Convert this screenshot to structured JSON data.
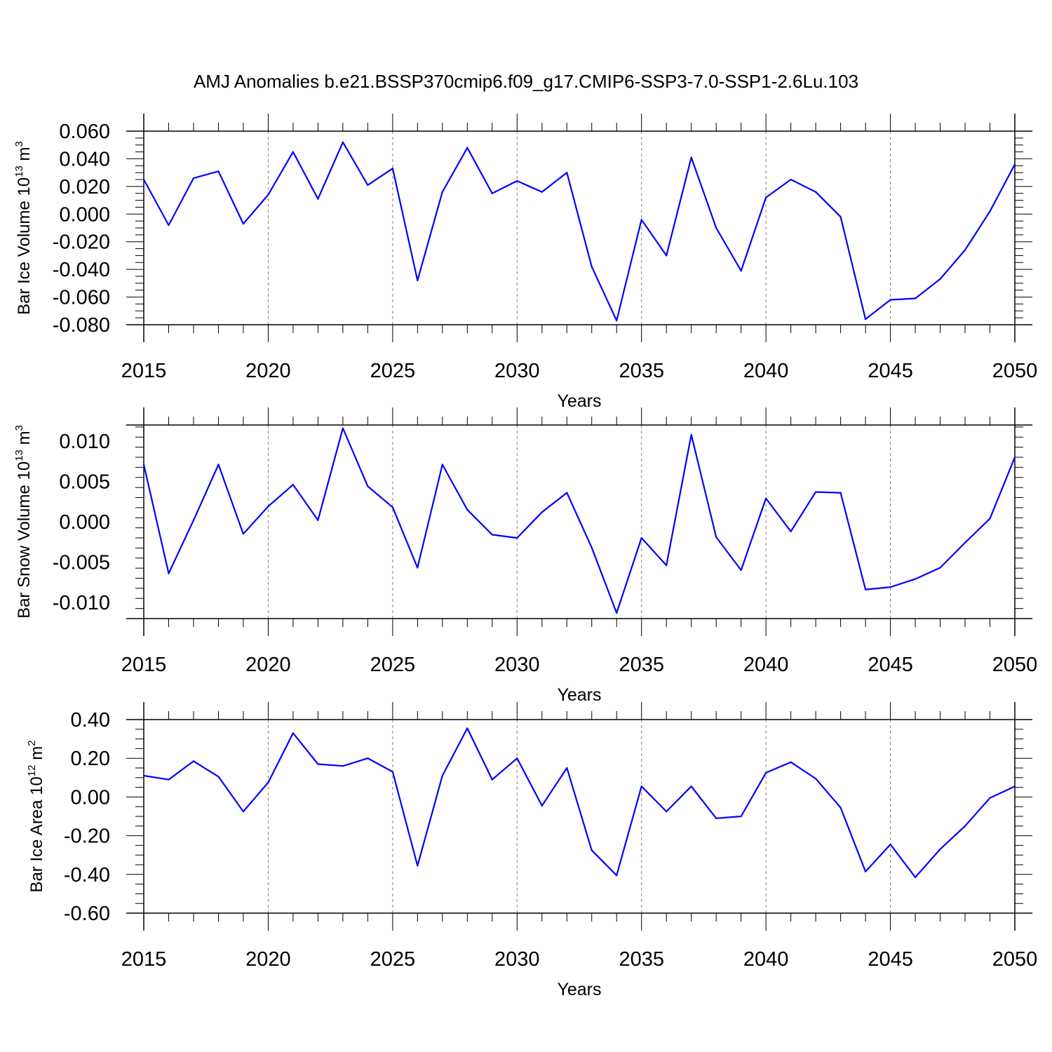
{
  "title": "AMJ Anomalies b.e21.BSSP370cmip6.f09_g17.CMIP6-SSP3-7.0-SSP1-2.6Lu.103",
  "colors": {
    "line": "#0000ff",
    "axis": "#000000",
    "grid": "#808080"
  },
  "chart_data": [
    {
      "type": "line",
      "ylabel": {
        "base": "Bar Ice Volume 10",
        "sup": "13",
        "unit": "m",
        "unit_sup": "3"
      },
      "xlabel": "Years",
      "xlim": [
        2015,
        2050
      ],
      "ylim": [
        -0.08,
        0.06
      ],
      "xticks": [
        "2015",
        "2020",
        "2025",
        "2030",
        "2035",
        "2040",
        "2045",
        "2050"
      ],
      "yticks": [
        "0.060",
        "0.040",
        "0.020",
        "0.000",
        "-0.020",
        "-0.040",
        "-0.060",
        "-0.080"
      ],
      "ytick_values": [
        0.06,
        0.04,
        0.02,
        0.0,
        -0.02,
        -0.04,
        -0.06,
        -0.08
      ],
      "grid": "vertical dashed at major x ticks",
      "x": [
        2015,
        2016,
        2017,
        2018,
        2019,
        2020,
        2021,
        2022,
        2023,
        2024,
        2025,
        2026,
        2027,
        2028,
        2029,
        2030,
        2031,
        2032,
        2033,
        2034,
        2035,
        2036,
        2037,
        2038,
        2039,
        2040,
        2041,
        2042,
        2043,
        2044,
        2045,
        2046,
        2047,
        2048,
        2049,
        2050
      ],
      "values": [
        0.025,
        -0.008,
        0.026,
        0.031,
        -0.007,
        0.014,
        0.045,
        0.011,
        0.052,
        0.021,
        0.033,
        -0.048,
        0.016,
        0.048,
        0.015,
        0.024,
        0.016,
        0.03,
        -0.038,
        -0.077,
        -0.004,
        -0.03,
        0.041,
        -0.01,
        -0.041,
        0.012,
        0.025,
        0.016,
        -0.002,
        -0.076,
        -0.062,
        -0.061,
        -0.047,
        -0.026,
        0.002,
        0.036
      ]
    },
    {
      "type": "line",
      "ylabel": {
        "base": "Bar Snow Volume 10",
        "sup": "13",
        "unit": "m",
        "unit_sup": "3"
      },
      "xlabel": "Years",
      "xlim": [
        2015,
        2050
      ],
      "ylim": [
        -0.012,
        0.012
      ],
      "xticks": [
        "2015",
        "2020",
        "2025",
        "2030",
        "2035",
        "2040",
        "2045",
        "2050"
      ],
      "yticks": [
        "0.010",
        "0.005",
        "0.000",
        "-0.005",
        "-0.010"
      ],
      "ytick_values": [
        0.01,
        0.005,
        0.0,
        -0.005,
        -0.01
      ],
      "grid": "vertical dashed at major x ticks",
      "x": [
        2015,
        2016,
        2017,
        2018,
        2019,
        2020,
        2021,
        2022,
        2023,
        2024,
        2025,
        2026,
        2027,
        2028,
        2029,
        2030,
        2031,
        2032,
        2033,
        2034,
        2035,
        2036,
        2037,
        2038,
        2039,
        2040,
        2041,
        2042,
        2043,
        2044,
        2045,
        2046,
        2047,
        2048,
        2049,
        2050
      ],
      "values": [
        0.0071,
        -0.0064,
        0.0002,
        0.0071,
        -0.0015,
        0.0019,
        0.0046,
        0.0002,
        0.0116,
        0.0044,
        0.0018,
        -0.0057,
        0.0071,
        0.0015,
        -0.0016,
        -0.002,
        0.0012,
        0.0036,
        -0.0032,
        -0.0113,
        -0.002,
        -0.0054,
        0.0108,
        -0.0019,
        -0.006,
        0.0029,
        -0.0012,
        0.0037,
        0.0036,
        -0.0084,
        -0.0081,
        -0.0071,
        -0.0057,
        -0.0026,
        0.0004,
        0.008
      ]
    },
    {
      "type": "line",
      "ylabel": {
        "base": "Bar Ice Area 10",
        "sup": "12",
        "unit": "m",
        "unit_sup": "2"
      },
      "xlabel": "Years",
      "xlim": [
        2015,
        2050
      ],
      "ylim": [
        -0.6,
        0.4
      ],
      "xticks": [
        "2015",
        "2020",
        "2025",
        "2030",
        "2035",
        "2040",
        "2045",
        "2050"
      ],
      "yticks": [
        "0.40",
        "0.20",
        "0.00",
        "-0.20",
        "-0.40",
        "-0.60"
      ],
      "ytick_values": [
        0.4,
        0.2,
        0.0,
        -0.2,
        -0.4,
        -0.6
      ],
      "grid": "vertical dashed at major x ticks",
      "x": [
        2015,
        2016,
        2017,
        2018,
        2019,
        2020,
        2021,
        2022,
        2023,
        2024,
        2025,
        2026,
        2027,
        2028,
        2029,
        2030,
        2031,
        2032,
        2033,
        2034,
        2035,
        2036,
        2037,
        2038,
        2039,
        2040,
        2041,
        2042,
        2043,
        2044,
        2045,
        2046,
        2047,
        2048,
        2049,
        2050
      ],
      "values": [
        0.11,
        0.09,
        0.185,
        0.105,
        -0.075,
        0.075,
        0.33,
        0.17,
        0.16,
        0.2,
        0.13,
        -0.355,
        0.11,
        0.355,
        0.09,
        0.2,
        -0.045,
        0.15,
        -0.275,
        -0.405,
        0.055,
        -0.075,
        0.055,
        -0.11,
        -0.1,
        0.125,
        0.18,
        0.095,
        -0.055,
        -0.385,
        -0.245,
        -0.415,
        -0.27,
        -0.15,
        -0.005,
        0.055
      ]
    }
  ]
}
